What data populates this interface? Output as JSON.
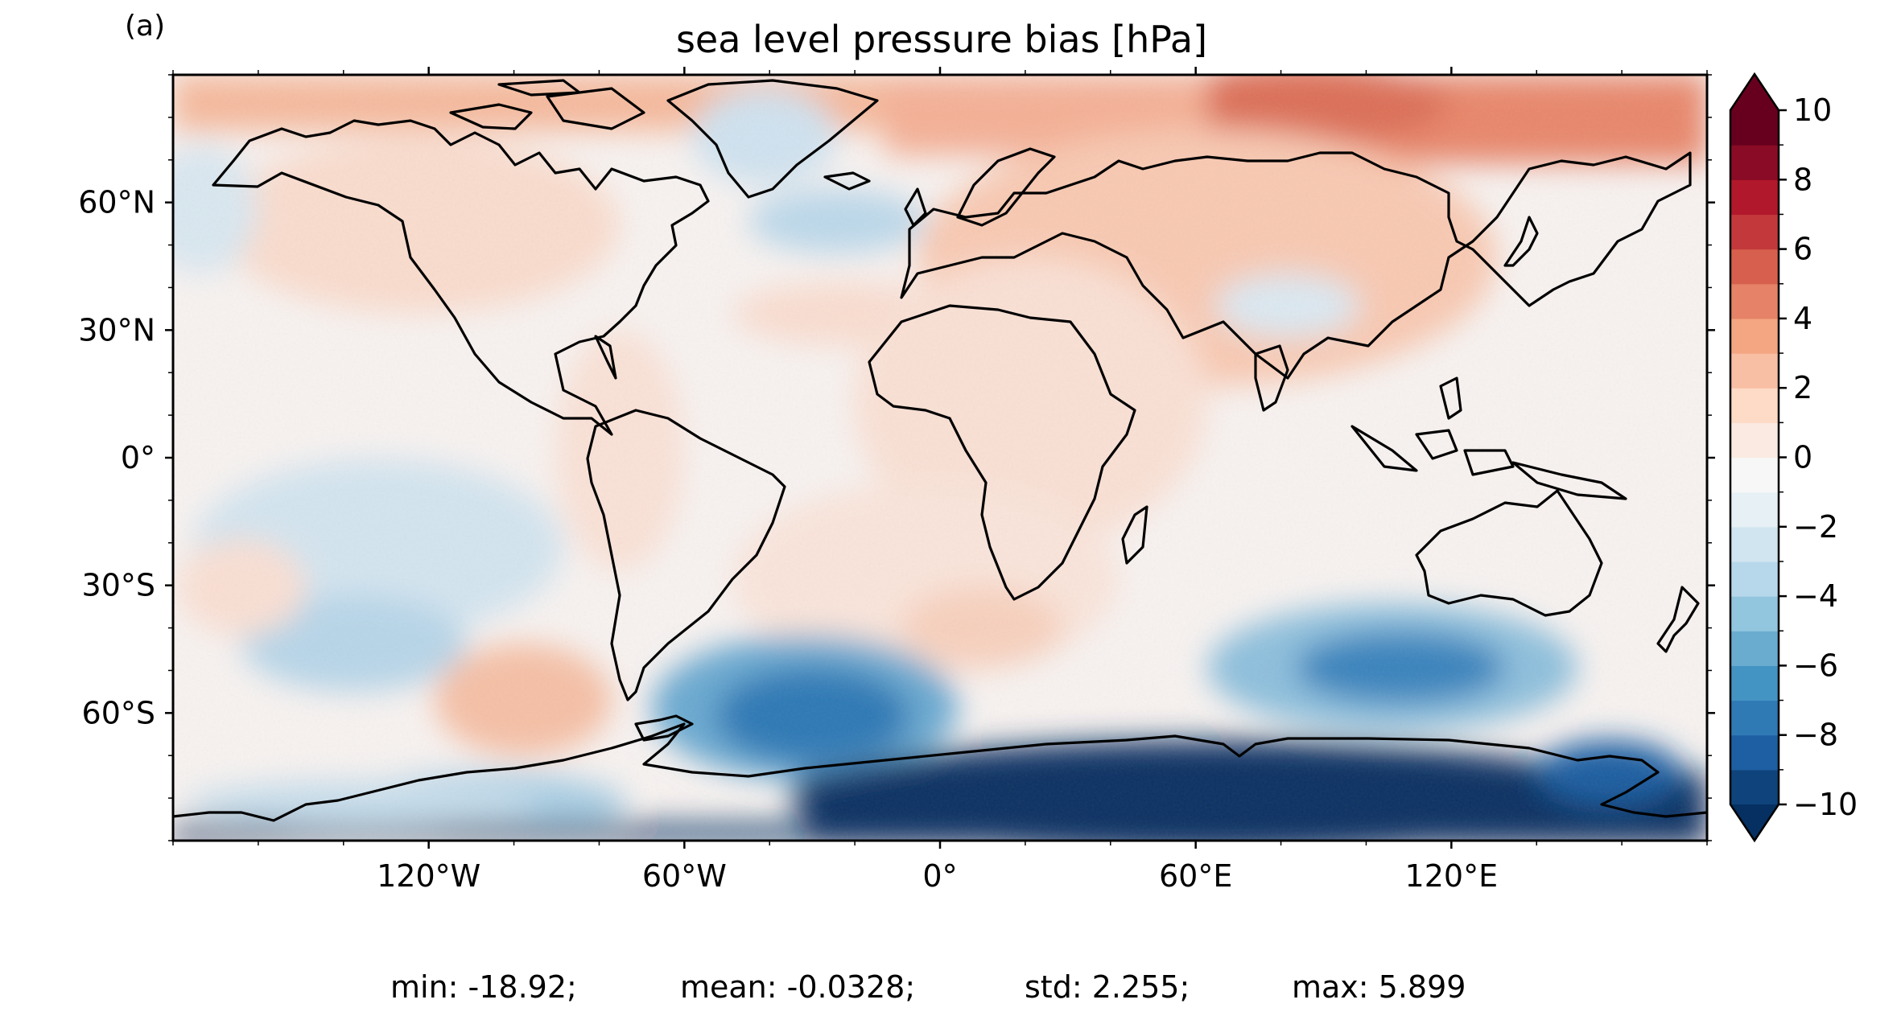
{
  "panel_label": "(a)",
  "title": "sea level pressure bias [hPa]",
  "map": {
    "projection": "PlateCarree",
    "lon_ticks": [
      {
        "value": -120,
        "label": "120°W"
      },
      {
        "value": -60,
        "label": "60°W"
      },
      {
        "value": 0,
        "label": "0°"
      },
      {
        "value": 60,
        "label": "60°E"
      },
      {
        "value": 120,
        "label": "120°E"
      }
    ],
    "lat_ticks": [
      {
        "value": 60,
        "label": "60°N"
      },
      {
        "value": 30,
        "label": "30°N"
      },
      {
        "value": 0,
        "label": "0°"
      },
      {
        "value": -30,
        "label": "30°S"
      },
      {
        "value": -60,
        "label": "60°S"
      }
    ],
    "coastlines": true
  },
  "colorbar": {
    "range": [
      -10,
      10
    ],
    "step": 1,
    "extend": "both",
    "cmap": "RdBu_r",
    "tick_labels": [
      "10",
      "8",
      "6",
      "4",
      "2",
      "0",
      "−2",
      "−4",
      "−6",
      "−8",
      "−10"
    ],
    "colors": [
      "#053061",
      "#0f437b",
      "#1d5fa2",
      "#2f79b5",
      "#4393c3",
      "#6aacd0",
      "#92c5de",
      "#b7d8ea",
      "#d1e5f0",
      "#e7f0f4",
      "#f7f7f7",
      "#faeae1",
      "#fddbc7",
      "#f8bfa4",
      "#f4a582",
      "#e58267",
      "#d6604d",
      "#c3393b",
      "#b2182b",
      "#8a0b25",
      "#67001f"
    ]
  },
  "stats": {
    "min": "min: -18.92;",
    "mean": "mean: -0.0328;",
    "std": "std: 2.255;",
    "max": "max: 5.899"
  }
}
